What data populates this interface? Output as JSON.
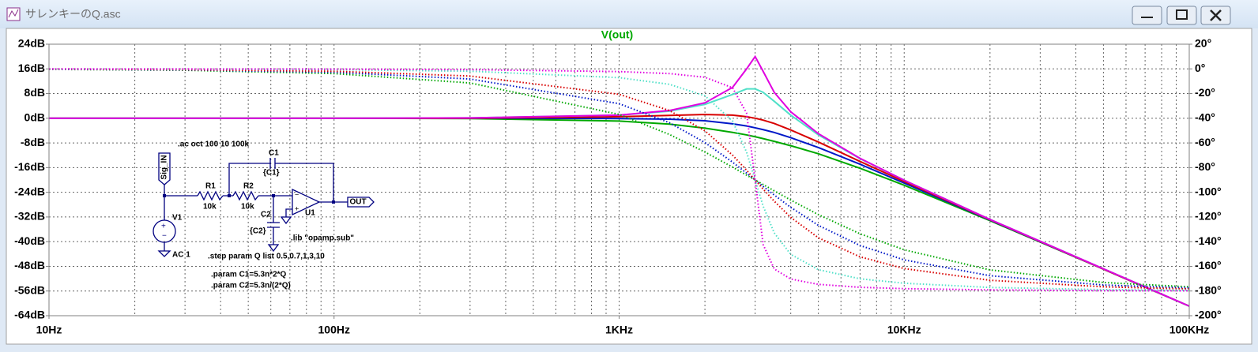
{
  "window": {
    "title": "サレンキーのQ.asc"
  },
  "chart_data": {
    "type": "line",
    "title": "V(out)",
    "xscale": "log",
    "grid": true,
    "x": [
      10,
      30,
      100,
      300,
      1000,
      1500,
      2000,
      2500,
      2800,
      3000,
      3200,
      3500,
      4000,
      5000,
      7000,
      10000,
      20000,
      50000,
      100000
    ],
    "xlim": [
      10,
      100000
    ],
    "xticks": [
      {
        "value": 10,
        "label": "10Hz"
      },
      {
        "value": 100,
        "label": "100Hz"
      },
      {
        "value": 1000,
        "label": "1KHz"
      },
      {
        "value": 10000,
        "label": "10KHz"
      },
      {
        "value": 100000,
        "label": "100KHz"
      }
    ],
    "xminor": [
      20,
      30,
      40,
      50,
      60,
      70,
      80,
      90,
      200,
      300,
      400,
      500,
      600,
      700,
      800,
      900,
      2000,
      3000,
      4000,
      5000,
      6000,
      7000,
      8000,
      9000,
      20000,
      30000,
      40000,
      50000,
      60000,
      70000,
      80000,
      90000
    ],
    "ylim": [
      -64,
      24
    ],
    "yticks": [
      {
        "value": 24,
        "label": "24dB"
      },
      {
        "value": 16,
        "label": "16dB"
      },
      {
        "value": 8,
        "label": "8dB"
      },
      {
        "value": 0,
        "label": "0dB"
      },
      {
        "value": -8,
        "label": "-8dB"
      },
      {
        "value": -16,
        "label": "-16dB"
      },
      {
        "value": -24,
        "label": "-24dB"
      },
      {
        "value": -32,
        "label": "-32dB"
      },
      {
        "value": -40,
        "label": "-40dB"
      },
      {
        "value": -48,
        "label": "-48dB"
      },
      {
        "value": -56,
        "label": "-56dB"
      },
      {
        "value": -64,
        "label": "-64dB"
      }
    ],
    "y2lim": [
      -200,
      20
    ],
    "y2ticks": [
      {
        "value": 20,
        "label": "20°"
      },
      {
        "value": 0,
        "label": "0°"
      },
      {
        "value": -20,
        "label": "-20°"
      },
      {
        "value": -40,
        "label": "-40°"
      },
      {
        "value": -60,
        "label": "-60°"
      },
      {
        "value": -80,
        "label": "-80°"
      },
      {
        "value": -100,
        "label": "-100°"
      },
      {
        "value": -120,
        "label": "-120°"
      },
      {
        "value": -140,
        "label": "-140°"
      },
      {
        "value": -160,
        "label": "-160°"
      },
      {
        "value": -180,
        "label": "-180°"
      },
      {
        "value": -200,
        "label": "-200°"
      }
    ],
    "series": [
      {
        "color": "#00a800",
        "values": [
          0,
          0,
          0,
          -0.1,
          -0.9,
          -1.9,
          -3.2,
          -4.6,
          -5.4,
          -6.0,
          -6.6,
          -7.5,
          -8.9,
          -11.5,
          -16.2,
          -21.7,
          -33.2,
          -48.9,
          -60.9
        ]
      },
      {
        "color": "#0018c8",
        "values": [
          0,
          0,
          0,
          0,
          -0.1,
          -0.3,
          -0.8,
          -1.8,
          -2.5,
          -3.1,
          -3.7,
          -4.6,
          -6.3,
          -9.5,
          -14.9,
          -21.0,
          -33.0,
          -48.9,
          -60.9
        ]
      },
      {
        "color": "#d80000",
        "values": [
          0,
          0,
          0,
          0,
          0.5,
          0.9,
          1.2,
          1.0,
          0.5,
          0,
          -0.6,
          -1.7,
          -3.8,
          -7.7,
          -14.0,
          -20.5,
          -32.9,
          -48.9,
          -60.9
        ]
      },
      {
        "color": "#50e0c8",
        "values": [
          0,
          0,
          0,
          0.1,
          1.0,
          2.3,
          4.5,
          7.7,
          9.5,
          9.5,
          8.4,
          5.5,
          1.0,
          -5.4,
          -13.1,
          -20.1,
          -32.8,
          -48.8,
          -60.9
        ]
      },
      {
        "color": "#e000e0",
        "values": [
          0,
          0,
          0,
          0.1,
          1.0,
          2.5,
          5.0,
          10.0,
          16.0,
          20.0,
          15.2,
          8.4,
          2.1,
          -5.0,
          -13.0,
          -20.1,
          -32.8,
          -48.8,
          -60.9
        ]
      },
      {
        "color": "#00a800",
        "axis": "y2",
        "dash": "dotted",
        "values": [
          -0.4,
          -1.1,
          -3.8,
          -11.4,
          -36.9,
          -53.1,
          -67.4,
          -79.6,
          -86.1,
          -90,
          -93.7,
          -98.8,
          -106.3,
          -118.1,
          -133.6,
          -146.6,
          -162.9,
          -173.1,
          -176.6
        ]
      },
      {
        "color": "#0018c8",
        "axis": "y2",
        "dash": "dotted",
        "values": [
          -0.3,
          -0.8,
          -2.7,
          -8.2,
          -28.2,
          -43.6,
          -59.7,
          -75.6,
          -84.5,
          -90,
          -95.2,
          -102.2,
          -112.2,
          -126.8,
          -143.1,
          -154.8,
          -167.6,
          -175.1,
          -177.5
        ]
      },
      {
        "color": "#d80000",
        "axis": "y2",
        "dash": "dotted",
        "values": [
          -0.2,
          -0.6,
          -1.9,
          -5.8,
          -20.6,
          -33.7,
          -50.2,
          -69.9,
          -82.1,
          -90,
          -97.4,
          -107.2,
          -120.3,
          -136.9,
          -152.3,
          -161.8,
          -171.3,
          -176.6,
          -178.3
        ]
      },
      {
        "color": "#50e0c8",
        "axis": "y2",
        "dash": "dotted",
        "values": [
          -0.1,
          -0.2,
          -0.6,
          -1.9,
          -7.1,
          -12.5,
          -21.8,
          -42.3,
          -67.5,
          -90,
          -111.2,
          -132.9,
          -150.3,
          -162.7,
          -170.1,
          -173.7,
          -177.1,
          -178.9,
          -179.4
        ]
      },
      {
        "color": "#e000e0",
        "axis": "y2",
        "dash": "dotted",
        "values": [
          0,
          -0.1,
          -0.2,
          -0.6,
          -2.2,
          -3.8,
          -6.8,
          -15.3,
          -35.9,
          -90,
          -142.3,
          -162.1,
          -170.3,
          -174.6,
          -177.0,
          -178.1,
          -179.1,
          -179.7,
          -179.8
        ]
      }
    ]
  },
  "schematic": {
    "ac": ".ac oct 100 10 100k",
    "c1": "C1",
    "c1_value": "{C1}",
    "input": "Sig_IN",
    "r1": "R1",
    "r1_value": "10k",
    "r2": "R2",
    "r2_value": "10k",
    "c2": "C2",
    "c2_value": "{C2}",
    "u1": "U1",
    "output": "OUT",
    "v1": "V1",
    "v1_value": "AC 1",
    "lib": ".lib \"opamp.sub\"",
    "step": ".step param Q list 0.5,0.7,1,3,10",
    "param_c1": ".param C1=5.3n*2*Q",
    "param_c2": ".param C2=5.3n/(2*Q)"
  }
}
